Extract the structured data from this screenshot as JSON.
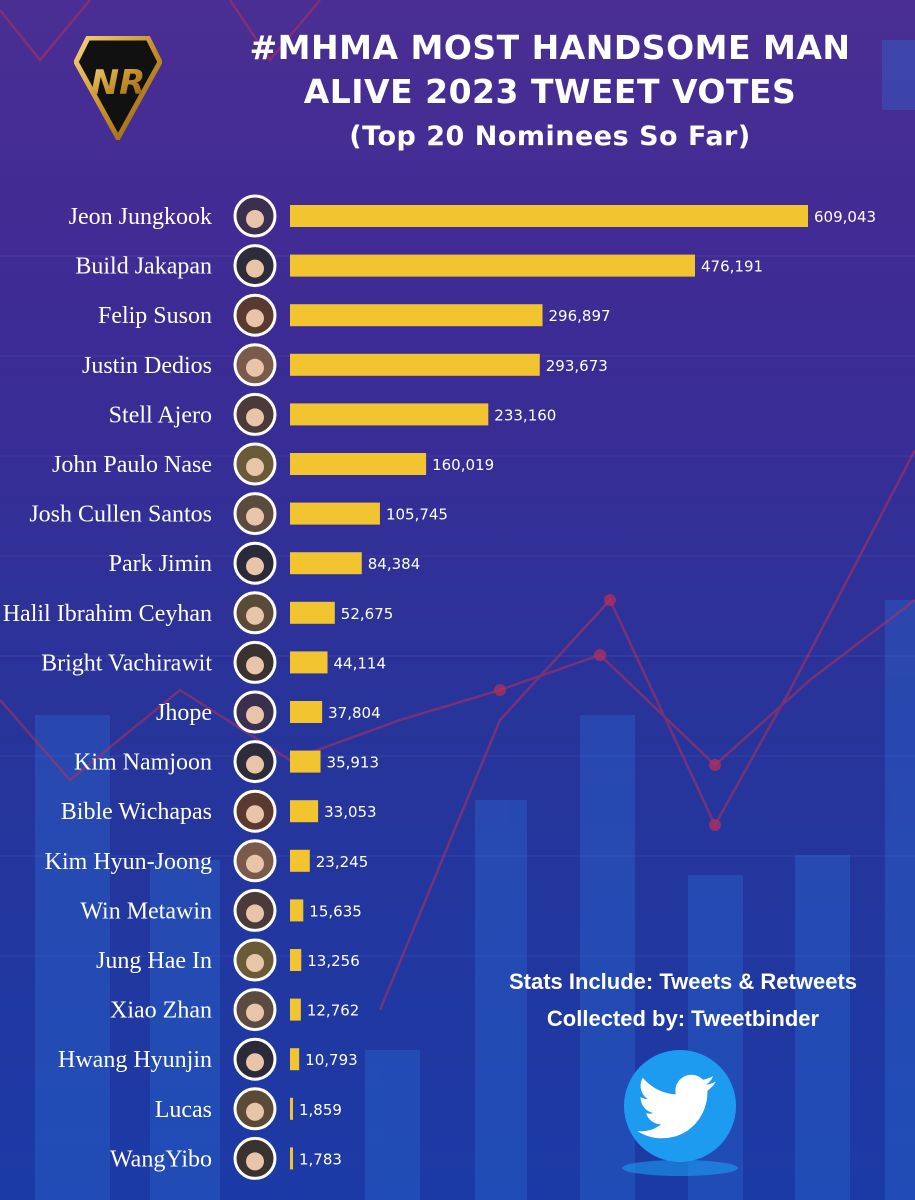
{
  "header": {
    "title_line1": "#MHMA MOST HANDSOME MAN",
    "title_line2": "ALIVE 2023 TWEET VOTES",
    "subtitle": "(Top 20 Nominees So Far)",
    "logo_text": "NR"
  },
  "footer": {
    "stats_line": "Stats Include: Tweets & Retweets",
    "collected_line": "Collected by: Tweetbinder"
  },
  "colors": {
    "bar": "#f2c530",
    "text": "#ffffff",
    "logo_gold": "#d4a537"
  },
  "chart_data": {
    "type": "bar",
    "orientation": "horizontal",
    "title": "#MHMA MOST HANDSOME MAN ALIVE 2023 TWEET VOTES",
    "subtitle": "(Top 20 Nominees So Far)",
    "categories": [
      "Jeon Jungkook",
      "Build Jakapan",
      "Felip Suson",
      "Justin Dedios",
      "Stell Ajero",
      "John Paulo Nase",
      "Josh Cullen Santos",
      "Park Jimin",
      "Halil Ibrahim Ceyhan",
      "Bright Vachirawit",
      "Jhope",
      "Kim Namjoon",
      "Bible Wichapas",
      "Kim Hyun-Joong",
      "Win Metawin",
      "Jung Hae In",
      "Xiao Zhan",
      "Hwang Hyunjin",
      "Lucas",
      "WangYibo"
    ],
    "values": [
      609043,
      476191,
      296897,
      293673,
      233160,
      160019,
      105745,
      84384,
      52675,
      44114,
      37804,
      35913,
      33053,
      23245,
      15635,
      13256,
      12762,
      10793,
      1859,
      1783
    ],
    "value_labels": [
      "609,043",
      "476,191",
      "296,897",
      "293,673",
      "233,160",
      "160,019",
      "105,745",
      "84,384",
      "52,675",
      "44,114",
      "37,804",
      "35,913",
      "33,053",
      "23,245",
      "15,635",
      "13,256",
      "12,762",
      "10,793",
      "1,859",
      "1,783"
    ],
    "xlim": [
      0,
      609043
    ],
    "grid": false,
    "legend": "none"
  }
}
